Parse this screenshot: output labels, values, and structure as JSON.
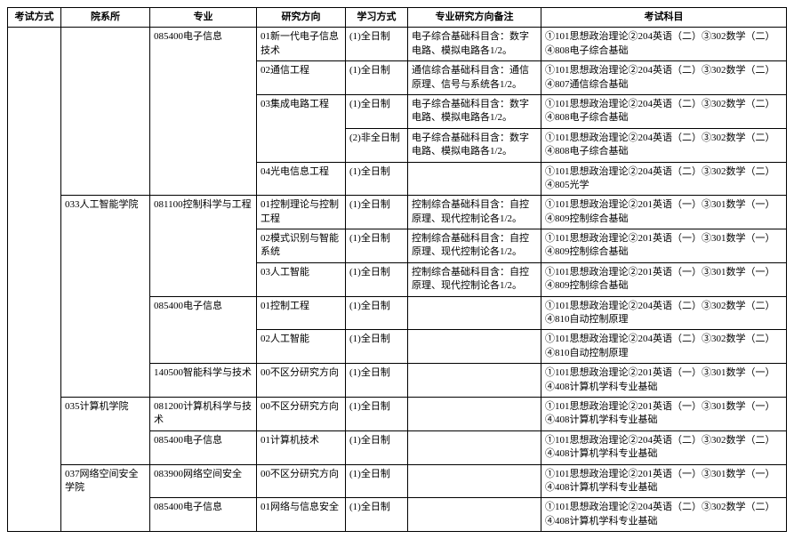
{
  "headers": [
    "考试方式",
    "院系所",
    "专业",
    "研究方向",
    "学习方式",
    "专业研究方向备注",
    "考试科目"
  ],
  "rows": [
    {
      "exam": "",
      "dept": "",
      "major": "085400电子信息",
      "dir": "01新一代电子信息技术",
      "mode": "(1)全日制",
      "note": "电子综合基础科目含：数字电路、模拟电路各1/2。",
      "subj": "①101思想政治理论②204英语（二）③302数学（二）④808电子综合基础"
    },
    {
      "exam": "",
      "dept": "",
      "major": "",
      "dir": "02通信工程",
      "mode": "(1)全日制",
      "note": "通信综合基础科目含：通信原理、信号与系统各1/2。",
      "subj": "①101思想政治理论②204英语（二）③302数学（二）④807通信综合基础"
    },
    {
      "exam": "",
      "dept": "",
      "major": "",
      "dir": "03集成电路工程",
      "mode": "(1)全日制",
      "note": "电子综合基础科目含：数字电路、模拟电路各1/2。",
      "subj": "①101思想政治理论②204英语（二）③302数学（二）④808电子综合基础"
    },
    {
      "exam": "",
      "dept": "",
      "major": "",
      "dir": "",
      "mode": "(2)非全日制",
      "note": "电子综合基础科目含：数字电路、模拟电路各1/2。",
      "subj": "①101思想政治理论②204英语（二）③302数学（二）④808电子综合基础"
    },
    {
      "exam": "",
      "dept": "",
      "major": "",
      "dir": "04光电信息工程",
      "mode": "(1)全日制",
      "note": "",
      "subj": "①101思想政治理论②204英语（二）③302数学（二）④805光学"
    },
    {
      "exam": "",
      "dept": "033人工智能学院",
      "major": "081100控制科学与工程",
      "dir": "01控制理论与控制工程",
      "mode": "(1)全日制",
      "note": "控制综合基础科目含：自控原理、现代控制论各1/2。",
      "subj": "①101思想政治理论②201英语（一）③301数学（一）④809控制综合基础"
    },
    {
      "exam": "",
      "dept": "",
      "major": "",
      "dir": "02模式识别与智能系统",
      "mode": "(1)全日制",
      "note": "控制综合基础科目含：自控原理、现代控制论各1/2。",
      "subj": "①101思想政治理论②201英语（一）③301数学（一）④809控制综合基础"
    },
    {
      "exam": "",
      "dept": "",
      "major": "",
      "dir": "03人工智能",
      "mode": "(1)全日制",
      "note": "控制综合基础科目含：自控原理、现代控制论各1/2。",
      "subj": "①101思想政治理论②201英语（一）③301数学（一）④809控制综合基础"
    },
    {
      "exam": "",
      "dept": "",
      "major": "085400电子信息",
      "dir": "01控制工程",
      "mode": "(1)全日制",
      "note": "",
      "subj": "①101思想政治理论②204英语（二）③302数学（二）④810自动控制原理"
    },
    {
      "exam": "",
      "dept": "",
      "major": "",
      "dir": "02人工智能",
      "mode": "(1)全日制",
      "note": "",
      "subj": "①101思想政治理论②204英语（二）③302数学（二）④810自动控制原理"
    },
    {
      "exam": "",
      "dept": "",
      "major": "140500智能科学与技术",
      "dir": "00不区分研究方向",
      "mode": "(1)全日制",
      "note": "",
      "subj": "①101思想政治理论②201英语（一）③301数学（一）④408计算机学科专业基础"
    },
    {
      "exam": "",
      "dept": "035计算机学院",
      "major": "081200计算机科学与技术",
      "dir": "00不区分研究方向",
      "mode": "(1)全日制",
      "note": "",
      "subj": "①101思想政治理论②201英语（一）③301数学（一）④408计算机学科专业基础"
    },
    {
      "exam": "",
      "dept": "",
      "major": "085400电子信息",
      "dir": "01计算机技术",
      "mode": "(1)全日制",
      "note": "",
      "subj": "①101思想政治理论②204英语（二）③302数学（二）④408计算机学科专业基础"
    },
    {
      "exam": "",
      "dept": "037网络空间安全学院",
      "major": "083900网络空间安全",
      "dir": "00不区分研究方向",
      "mode": "(1)全日制",
      "note": "",
      "subj": "①101思想政治理论②201英语（一）③301数学（一）④408计算机学科专业基础"
    },
    {
      "exam": "",
      "dept": "",
      "major": "085400电子信息",
      "dir": "01网络与信息安全",
      "mode": "(1)全日制",
      "note": "",
      "subj": "①101思想政治理论②204英语（二）③302数学（二）④408计算机学科专业基础"
    }
  ],
  "spans": {
    "exam": [
      {
        "start": 0,
        "span": 15
      }
    ],
    "dept": [
      {
        "start": 0,
        "span": 5
      },
      {
        "start": 5,
        "span": 6
      },
      {
        "start": 11,
        "span": 2
      },
      {
        "start": 13,
        "span": 2
      }
    ],
    "major": [
      {
        "start": 0,
        "span": 5
      },
      {
        "start": 5,
        "span": 3
      },
      {
        "start": 8,
        "span": 2
      },
      {
        "start": 10,
        "span": 1
      },
      {
        "start": 11,
        "span": 1
      },
      {
        "start": 12,
        "span": 1
      },
      {
        "start": 13,
        "span": 1
      },
      {
        "start": 14,
        "span": 1
      }
    ],
    "dir": [
      {
        "start": 0,
        "span": 1
      },
      {
        "start": 1,
        "span": 1
      },
      {
        "start": 2,
        "span": 2
      },
      {
        "start": 4,
        "span": 1
      },
      {
        "start": 5,
        "span": 1
      },
      {
        "start": 6,
        "span": 1
      },
      {
        "start": 7,
        "span": 1
      },
      {
        "start": 8,
        "span": 1
      },
      {
        "start": 9,
        "span": 1
      },
      {
        "start": 10,
        "span": 1
      },
      {
        "start": 11,
        "span": 1
      },
      {
        "start": 12,
        "span": 1
      },
      {
        "start": 13,
        "span": 1
      },
      {
        "start": 14,
        "span": 1
      }
    ]
  }
}
